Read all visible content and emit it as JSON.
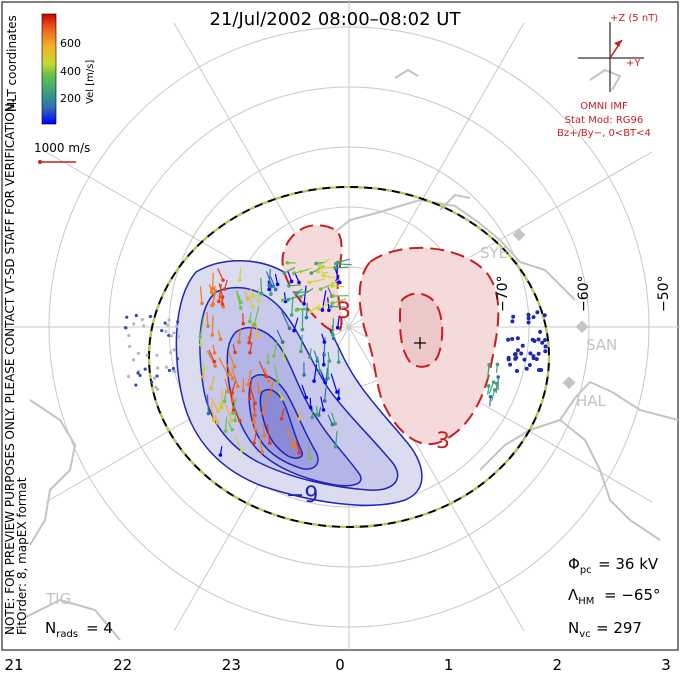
{
  "title": "21/Jul/2002 08:00–08:02 UT",
  "colorbar": {
    "label": "Vel [m/s]",
    "ticks": [
      "600",
      "400",
      "200"
    ],
    "colors": [
      "#0000ff",
      "#2f6fb0",
      "#3aa37a",
      "#6cc24a",
      "#c8d830",
      "#f2b32a",
      "#f07a1e",
      "#e43a1a",
      "#cc0000"
    ]
  },
  "coords_label": "MLT coordinates",
  "scale_label": "1000 m/s",
  "imf": {
    "z_label": "+Z (5 nT)",
    "y_label": "+Y",
    "source": "OMNI IMF",
    "model": "Stat Mod: RG96",
    "condition": "Bz+/By−, 0<BT<4"
  },
  "side_note": "NOTE: FOR PREVIEW PURPOSES ONLY. PLEASE CONTACT VT-SD STAFF FOR VERIFICATION.",
  "fit_note": "FitOrder: 8, mapEX format",
  "latitude_labels": [
    "−70°",
    "−60°",
    "−50°"
  ],
  "stations": [
    "SYE",
    "SAN",
    "HAL",
    "TIG"
  ],
  "contour_labels": [
    "3",
    "3",
    "−9"
  ],
  "stats": {
    "phi_pc": "= 36 kV",
    "lambda_hm": "= −65°",
    "n_vc": "= 297",
    "n_rads": "= 4"
  },
  "mlt_ticks": [
    "21",
    "22",
    "23",
    "0",
    "1",
    "2",
    "3"
  ],
  "colors": {
    "positive_cell": "#c81e1e",
    "negative_cell": "#1e28b4",
    "grid": "#c8c8c8",
    "hmb": "#000000"
  }
}
